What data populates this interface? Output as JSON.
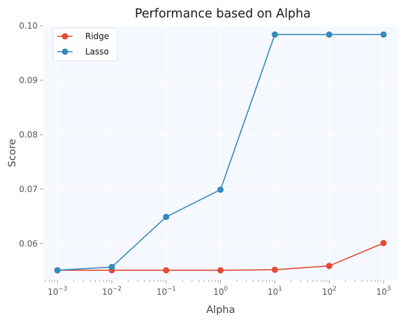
{
  "chart_data": {
    "type": "line",
    "title": "Performance based on Alpha",
    "xlabel": "Alpha",
    "ylabel": "Score",
    "xscale": "log",
    "x": [
      0.001,
      0.01,
      0.1,
      1,
      10,
      100,
      1000
    ],
    "x_tick_labels": [
      {
        "base": "10",
        "exp": "−3"
      },
      {
        "base": "10",
        "exp": "−2"
      },
      {
        "base": "10",
        "exp": "−1"
      },
      {
        "base": "10",
        "exp": "0"
      },
      {
        "base": "10",
        "exp": "1"
      },
      {
        "base": "10",
        "exp": "2"
      },
      {
        "base": "10",
        "exp": "3"
      }
    ],
    "y_ticks": [
      0.06,
      0.07,
      0.08,
      0.09,
      0.1
    ],
    "y_tick_labels": [
      "0.06",
      "0.07",
      "0.08",
      "0.09",
      "0.10"
    ],
    "xlim": [
      0.00055,
      1800
    ],
    "ylim": [
      0.0533,
      0.1
    ],
    "grid": true,
    "legend_position": "top-left",
    "series": [
      {
        "name": "Ridge",
        "color": "#E24A33",
        "values": [
          0.0551,
          0.0551,
          0.0551,
          0.0551,
          0.0552,
          0.0559,
          0.0601
        ]
      },
      {
        "name": "Lasso",
        "color": "#348ABD",
        "values": [
          0.0551,
          0.0557,
          0.0649,
          0.0699,
          0.0984,
          0.0984,
          0.0984
        ]
      }
    ]
  }
}
